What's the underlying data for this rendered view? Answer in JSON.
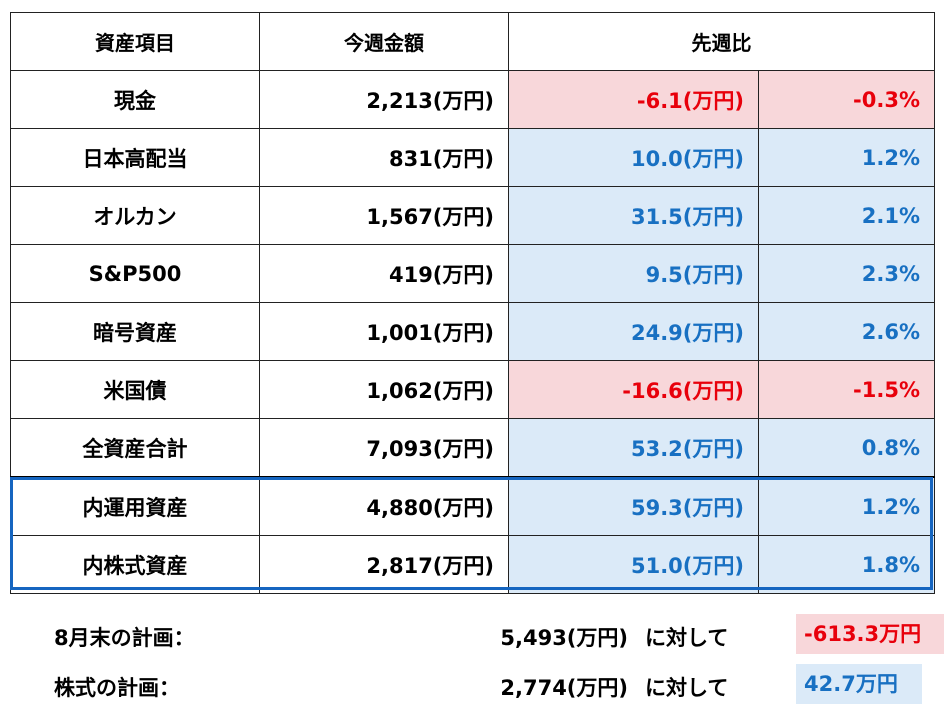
{
  "headers": {
    "item": "資産項目",
    "amount": "今週金額",
    "compare": "先週比"
  },
  "rows": [
    {
      "name": "現金",
      "amount": "2,213(万円)",
      "change": "-6.1(万円)",
      "percent": "-0.3%",
      "sign": "neg"
    },
    {
      "name": "日本高配当",
      "amount": "831(万円)",
      "change": "10.0(万円)",
      "percent": "1.2%",
      "sign": "pos"
    },
    {
      "name": "オルカン",
      "amount": "1,567(万円)",
      "change": "31.5(万円)",
      "percent": "2.1%",
      "sign": "pos"
    },
    {
      "name": "S&P500",
      "amount": "419(万円)",
      "change": "9.5(万円)",
      "percent": "2.3%",
      "sign": "pos"
    },
    {
      "name": "暗号資産",
      "amount": "1,001(万円)",
      "change": "24.9(万円)",
      "percent": "2.6%",
      "sign": "pos"
    },
    {
      "name": "米国債",
      "amount": "1,062(万円)",
      "change": "-16.6(万円)",
      "percent": "-1.5%",
      "sign": "neg"
    },
    {
      "name": "全資産合計",
      "amount": "7,093(万円)",
      "change": "53.2(万円)",
      "percent": "0.8%",
      "sign": "pos"
    },
    {
      "name": "内運用資産",
      "amount": "4,880(万円)",
      "change": "59.3(万円)",
      "percent": "1.2%",
      "sign": "pos"
    },
    {
      "name": "内株式資産",
      "amount": "2,817(万円)",
      "change": "51.0(万円)",
      "percent": "1.8%",
      "sign": "pos"
    }
  ],
  "plans": [
    {
      "label": "8月末の計画：",
      "amount": "5,493(万円)",
      "versus": "に対して",
      "diff": "-613.3万円",
      "sign": "neg"
    },
    {
      "label": "株式の計画：",
      "amount": "2,774(万円)",
      "versus": "に対して",
      "diff": "42.7万円",
      "sign": "pos"
    }
  ],
  "colors": {
    "negative_bg": "#f8d7da",
    "negative_text": "#e8000b",
    "positive_bg": "#dbeaf8",
    "positive_text": "#1870c2",
    "highlight_border": "#1565c0"
  }
}
